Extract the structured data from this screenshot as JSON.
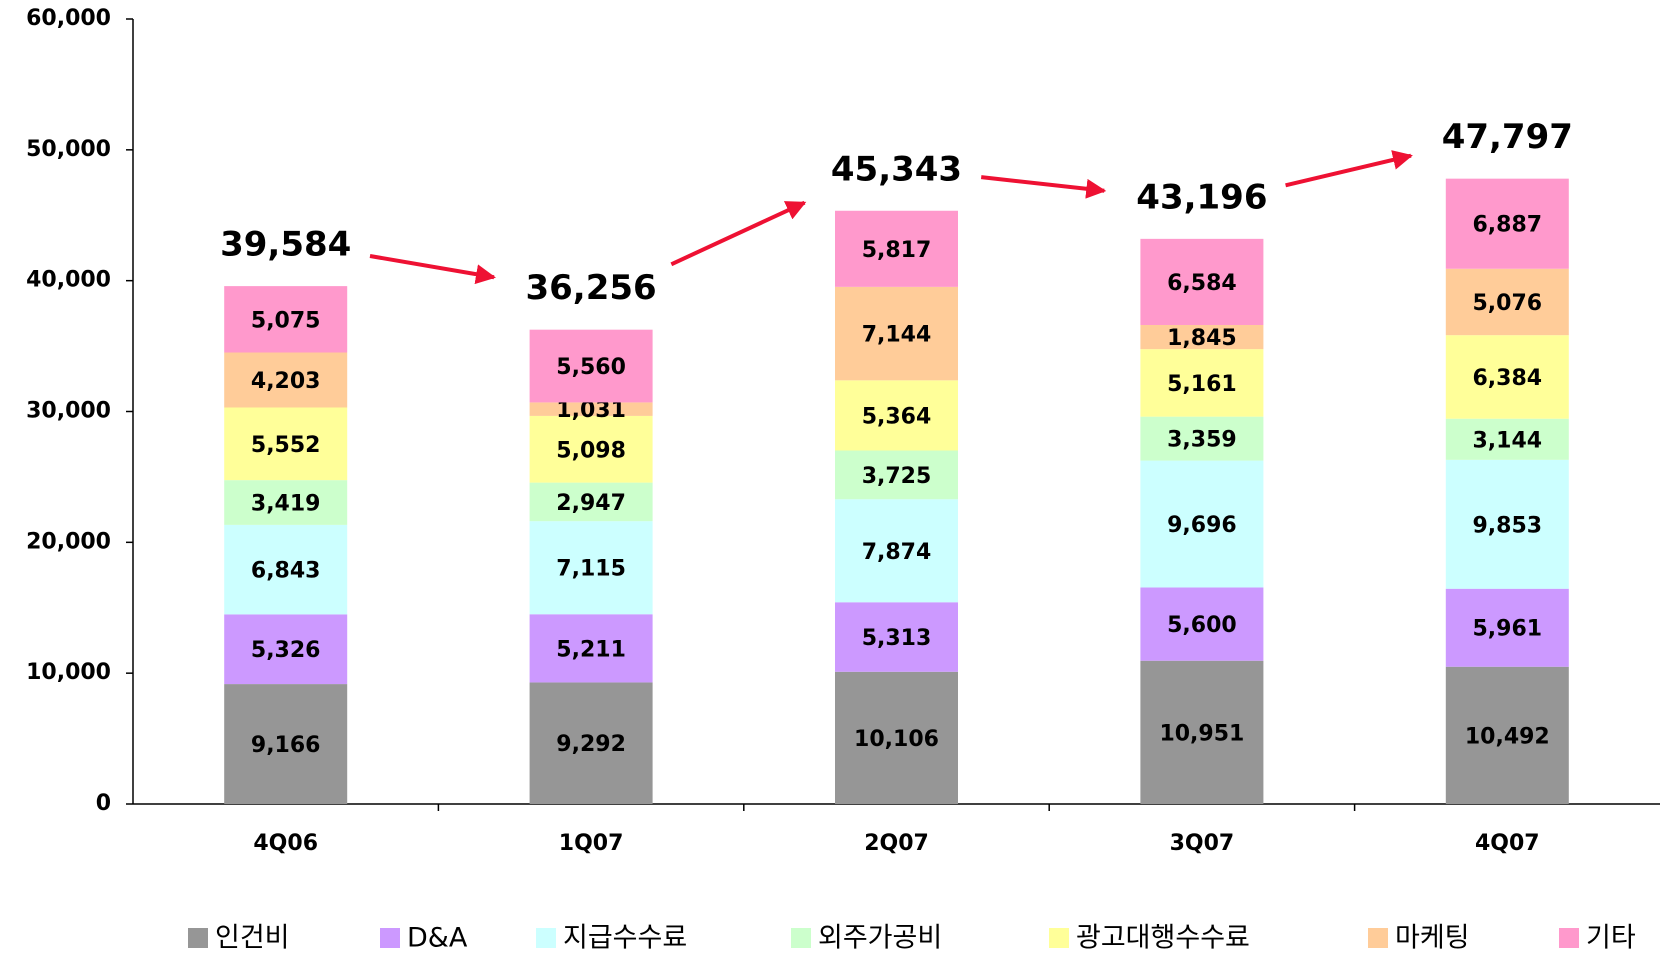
{
  "chart_data": {
    "type": "stacked-bar",
    "categories": [
      "4Q06",
      "1Q07",
      "2Q07",
      "3Q07",
      "4Q07"
    ],
    "series": [
      {
        "name": "인건비",
        "color": "#969696",
        "values": [
          9166,
          9292,
          10106,
          10951,
          10492
        ],
        "value_labels": [
          "9,166",
          "9,292",
          "10,106",
          "10,951",
          "10,492"
        ]
      },
      {
        "name": "D&A",
        "color": "#cc99ff",
        "values": [
          5326,
          5211,
          5313,
          5600,
          5961
        ],
        "value_labels": [
          "5,326",
          "5,211",
          "5,313",
          "5,600",
          "5,961"
        ]
      },
      {
        "name": "지급수수료",
        "color": "#ccffff",
        "values": [
          6843,
          7115,
          7874,
          9696,
          9853
        ],
        "value_labels": [
          "6,843",
          "7,115",
          "7,874",
          "9,696",
          "9,853"
        ]
      },
      {
        "name": "외주가공비",
        "color": "#ccffcc",
        "values": [
          3419,
          2947,
          3725,
          3359,
          3144
        ],
        "value_labels": [
          "3,419",
          "2,947",
          "3,725",
          "3,359",
          "3,144"
        ]
      },
      {
        "name": "광고대행수수료",
        "color": "#ffff99",
        "values": [
          5552,
          5098,
          5364,
          5161,
          6384
        ],
        "value_labels": [
          "5,552",
          "5,098",
          "5,364",
          "5,161",
          "6,384"
        ]
      },
      {
        "name": "마케팅",
        "color": "#ffcc99",
        "values": [
          4203,
          1031,
          7144,
          1845,
          5076
        ],
        "value_labels": [
          "4,203",
          "1,031",
          "7,144",
          "1,845",
          "5,076"
        ]
      },
      {
        "name": "기타",
        "color": "#ff99cc",
        "values": [
          5075,
          5560,
          5817,
          6584,
          6887
        ],
        "value_labels": [
          "5,075",
          "5,560",
          "5,817",
          "6,584",
          "6,887"
        ]
      }
    ],
    "totals": [
      39584,
      36256,
      45343,
      43196,
      47797
    ],
    "total_labels": [
      "39,584",
      "36,256",
      "45,343",
      "43,196",
      "47,797"
    ],
    "ylim": [
      0,
      60000
    ],
    "yticks": [
      0,
      {
        "value": 10000,
        "label": "10,000"
      },
      {
        "value": 20000,
        "label": "20,000"
      },
      {
        "value": 30000,
        "label": "30,000"
      },
      {
        "value": 40000,
        "label": "40,000"
      },
      {
        "value": 50000,
        "label": "50,000"
      },
      {
        "value": 60000,
        "label": "60,000"
      }
    ],
    "arrow_color": "#ee1133",
    "legend": "bottom"
  }
}
